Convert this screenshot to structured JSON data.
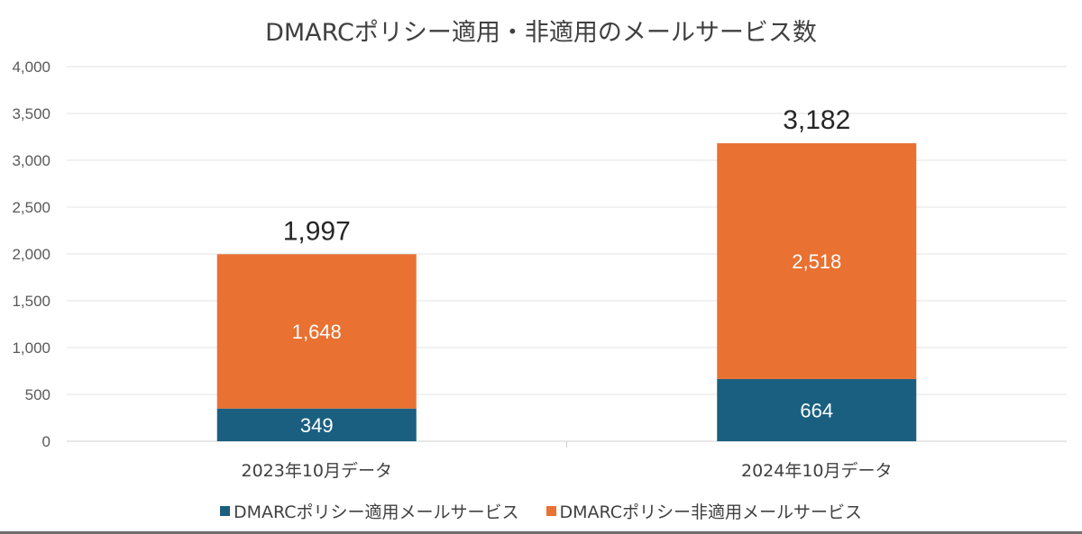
{
  "chart_data": {
    "type": "bar",
    "stacked": true,
    "title": "DMARCポリシー適用・非適用のメールサービス数",
    "categories": [
      "2023年10月データ",
      "2024年10月データ"
    ],
    "series": [
      {
        "name": "DMARCポリシー適用メールサービス",
        "values": [
          349,
          664
        ],
        "color": "#1a5f80"
      },
      {
        "name": "DMARCポリシー非適用メールサービス",
        "values": [
          1648,
          2518
        ],
        "color": "#e97132"
      }
    ],
    "totals": [
      1997,
      3182
    ],
    "totals_labels": [
      "1,997",
      "3,182"
    ],
    "segment_labels": [
      [
        "349",
        "664"
      ],
      [
        "1,648",
        "2,518"
      ]
    ],
    "ylim": [
      0,
      4000
    ],
    "yticks": [
      "0",
      "500",
      "1,000",
      "1,500",
      "2,000",
      "2,500",
      "3,000",
      "3,500",
      "4,000"
    ],
    "grid": true,
    "legend": "bottom",
    "xlabel": "",
    "ylabel": ""
  }
}
